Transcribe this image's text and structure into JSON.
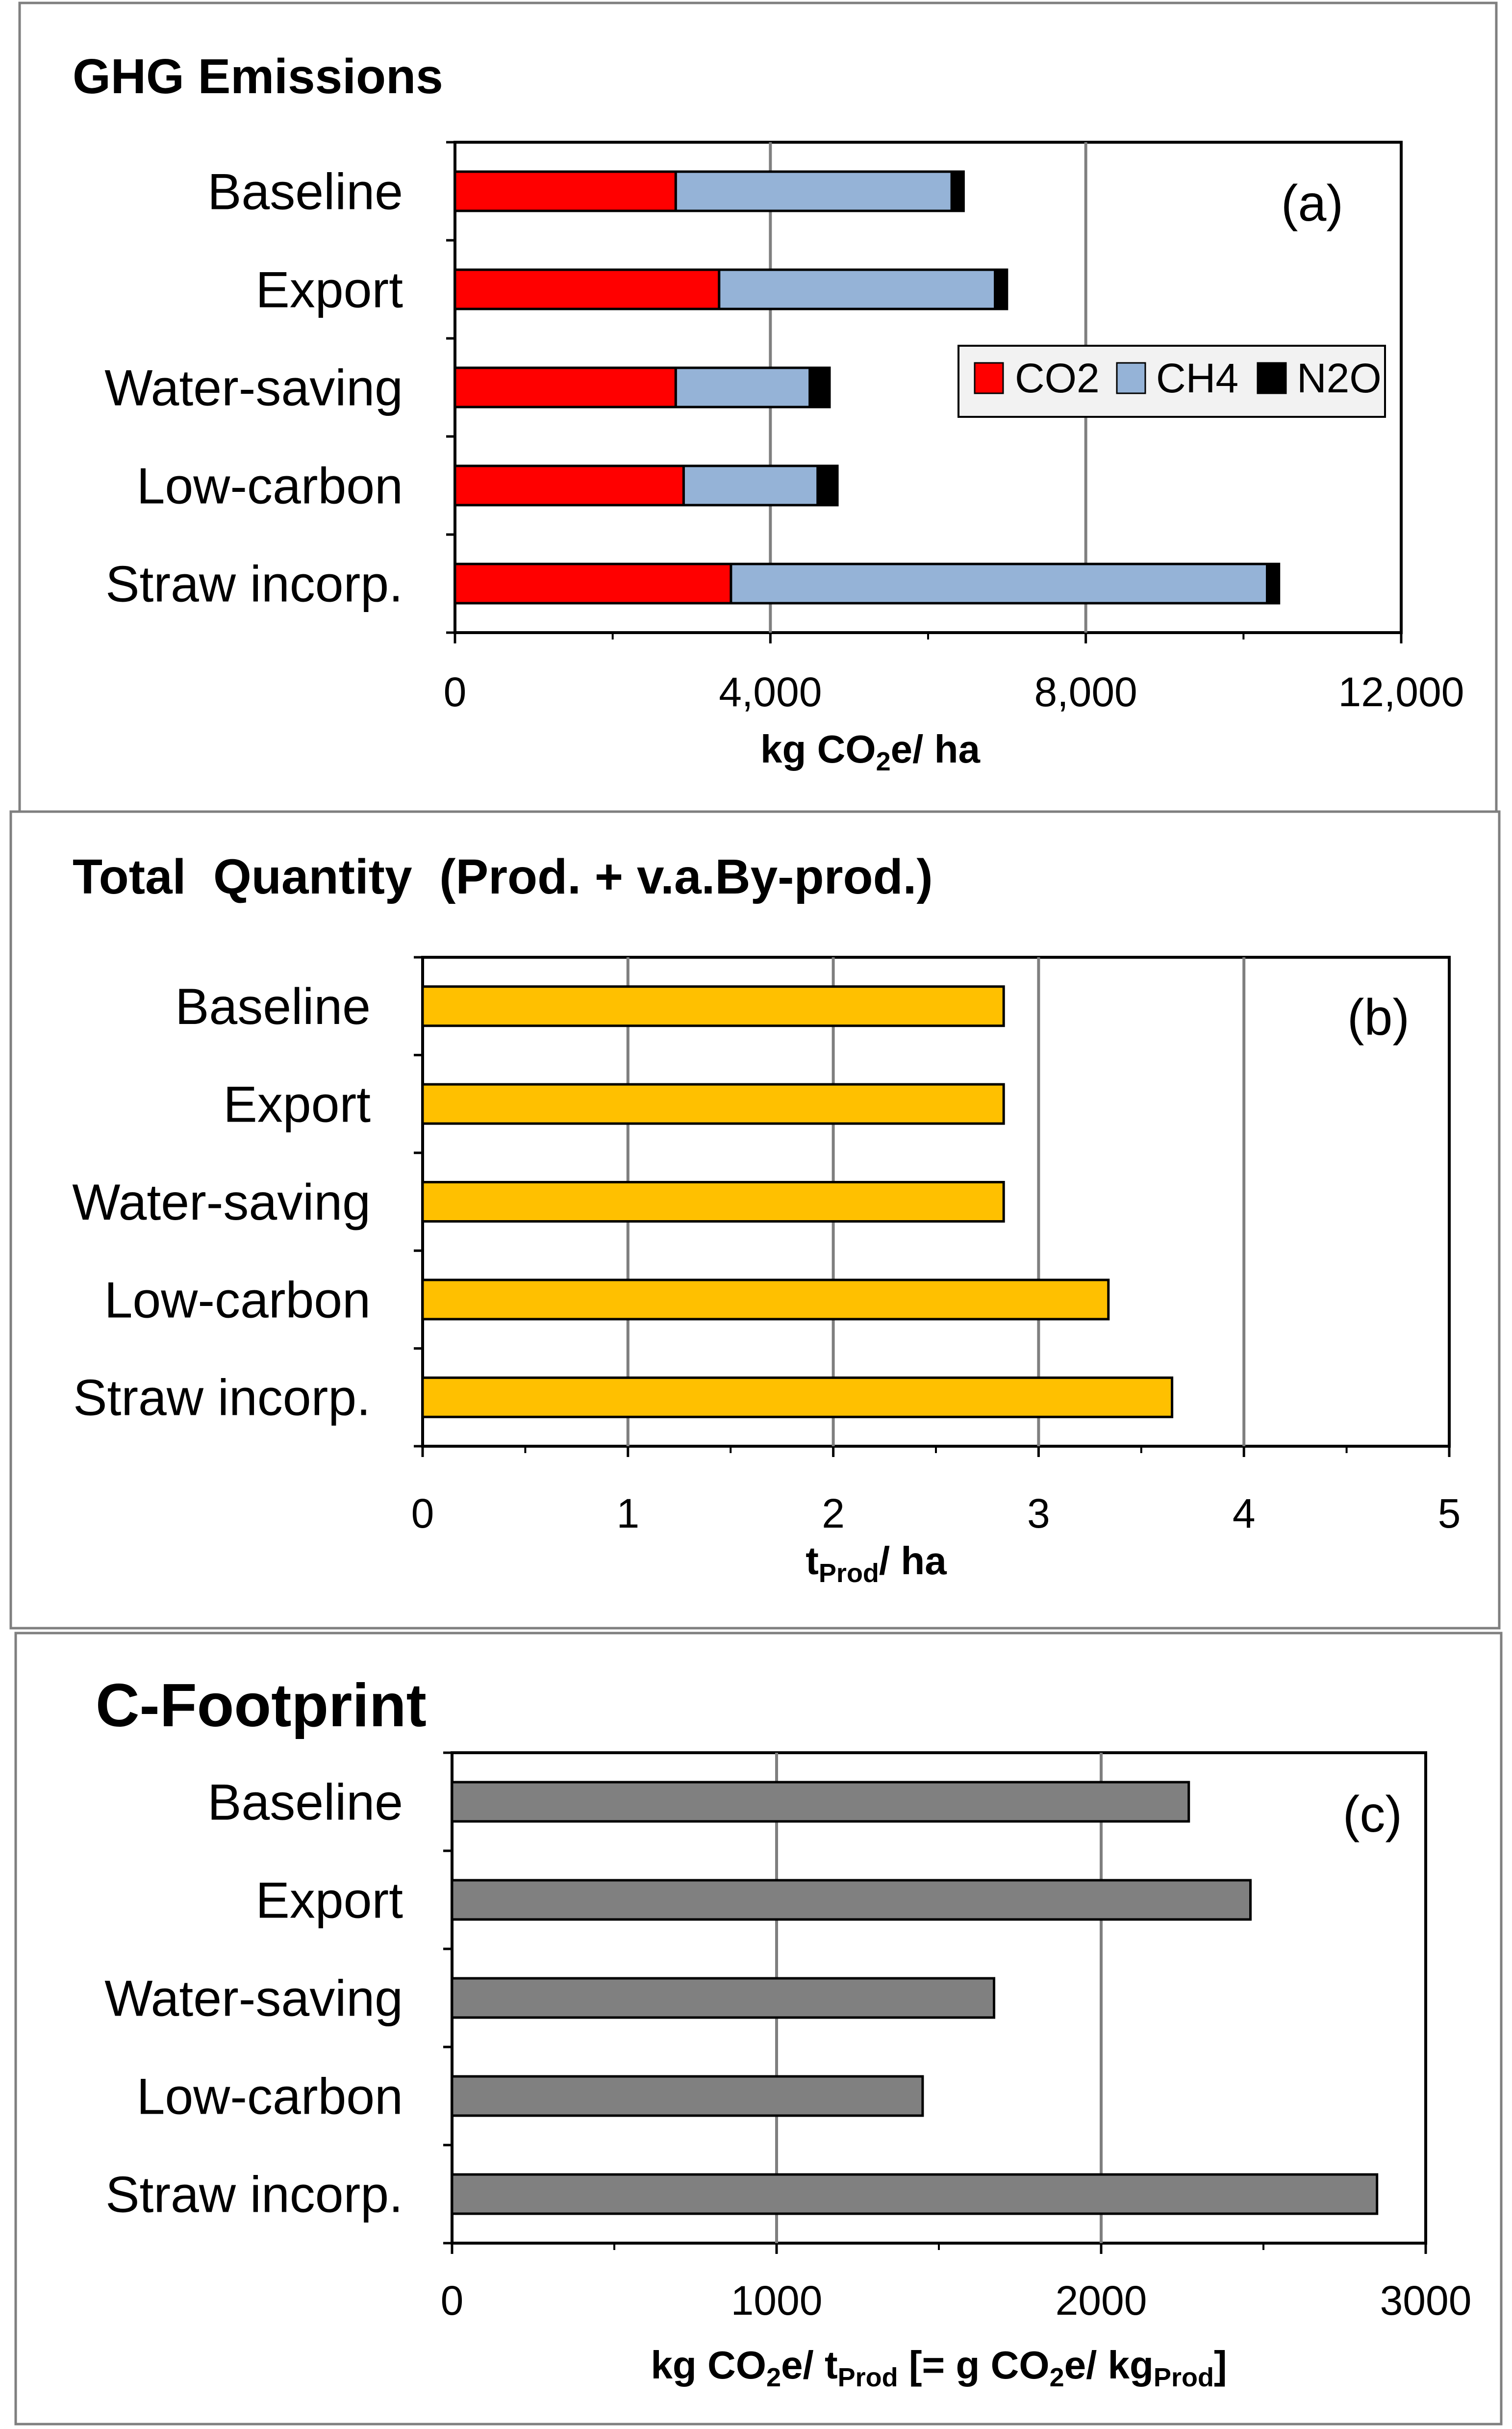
{
  "chart_data": [
    {
      "type": "bar",
      "orientation": "horizontal",
      "stacked": true,
      "title": "GHG Emissions",
      "panel_label": "(a)",
      "categories": [
        "Baseline",
        "Export",
        "Water-saving",
        "Low-carbon",
        "Straw incorp."
      ],
      "series": [
        {
          "name": "CO2",
          "color": "#ff0000",
          "values": [
            2800,
            3350,
            2800,
            2900,
            3500
          ]
        },
        {
          "name": "CH4",
          "color": "#95b3d7",
          "values": [
            3500,
            3500,
            1700,
            1700,
            6800
          ]
        },
        {
          "name": "N2O",
          "color": "#000000",
          "values": [
            150,
            150,
            250,
            250,
            150
          ]
        }
      ],
      "xlim": [
        0,
        12000
      ],
      "major_ticks": [
        0,
        4000,
        8000,
        12000
      ],
      "tick_labels": [
        "0",
        "4,000",
        "8,000",
        "12,000"
      ],
      "xlabel": {
        "main": "kg CO",
        "sub": "2",
        "rest": "e/ ha"
      },
      "legend_position": "right"
    },
    {
      "type": "bar",
      "orientation": "horizontal",
      "title": "Total  Quantity  (Prod. + v.a.By-prod.)",
      "panel_label": "(b)",
      "categories": [
        "Baseline",
        "Export",
        "Water-saving",
        "Low-carbon",
        "Straw incorp."
      ],
      "series": [
        {
          "name": "Total Quantity",
          "color": "#ffc000",
          "values": [
            2.83,
            2.83,
            2.83,
            3.34,
            3.65
          ]
        }
      ],
      "xlim": [
        0,
        5
      ],
      "major_ticks": [
        0,
        1,
        2,
        3,
        4,
        5
      ],
      "tick_labels": [
        "0",
        "1",
        "2",
        "3",
        "4",
        "5"
      ],
      "xlabel": {
        "main": "t",
        "sub": "Prod",
        "rest": "/ ha"
      }
    },
    {
      "type": "bar",
      "orientation": "horizontal",
      "title": "C-Footprint",
      "panel_label": "(c)",
      "categories": [
        "Baseline",
        "Export",
        "Water-saving",
        "Low-carbon",
        "Straw incorp."
      ],
      "series": [
        {
          "name": "C-Footprint",
          "color": "#808080",
          "values": [
            2270,
            2460,
            1670,
            1450,
            2850
          ]
        }
      ],
      "xlim": [
        0,
        3000
      ],
      "major_ticks": [
        0,
        1000,
        2000,
        3000
      ],
      "tick_labels": [
        "0",
        "1000",
        "2000",
        "3000"
      ],
      "xlabel": {
        "p1": "kg CO",
        "s1": "2",
        "p2": "e/ t",
        "s2": "Prod",
        "p3": " [= g CO",
        "s3": "2",
        "p4": "e/ kg",
        "s4": "Prod",
        "p5": "]"
      }
    }
  ]
}
